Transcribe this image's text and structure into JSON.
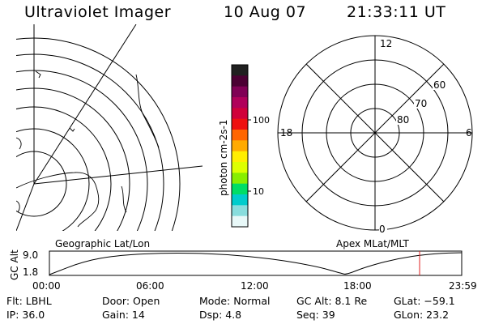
{
  "header": {
    "instrument": "Ultraviolet Imager",
    "date": "10 Aug 07",
    "time": "21:33:11 UT"
  },
  "geo_panel": {
    "label": "Geographic Lat/Lon"
  },
  "polar_panel": {
    "label": "Apex MLat/MLT",
    "mlt_labels": [
      "12",
      "18",
      "6",
      "0"
    ],
    "mlat_labels": [
      "60",
      "70",
      "80"
    ]
  },
  "colorbar": {
    "unit_label": "photon cm-2s-1",
    "tick_labels": [
      "100",
      "10"
    ],
    "colors": [
      "#202020",
      "#4b0033",
      "#800055",
      "#b0005a",
      "#d0003a",
      "#ee1010",
      "#ff6600",
      "#ffaa00",
      "#ffee00",
      "#ddff00",
      "#88ee00",
      "#00dd66",
      "#00cccc",
      "#88dddd",
      "#e8f8f8"
    ]
  },
  "altitude_plot": {
    "ylabel": "GC Alt",
    "yticks": [
      "9.0",
      "1.8"
    ],
    "xticks": [
      "00:00",
      "06:00",
      "12:00",
      "18:00",
      "23:59"
    ],
    "y_range": [
      1.8,
      9.0
    ],
    "curve": [
      {
        "t": 0.0,
        "alt": 1.8
      },
      {
        "t": 2.0,
        "alt": 6.2
      },
      {
        "t": 4.0,
        "alt": 8.2
      },
      {
        "t": 7.0,
        "alt": 9.0
      },
      {
        "t": 10.0,
        "alt": 8.6
      },
      {
        "t": 13.0,
        "alt": 7.0
      },
      {
        "t": 15.5,
        "alt": 4.6
      },
      {
        "t": 17.0,
        "alt": 2.2
      },
      {
        "t": 17.3,
        "alt": 1.8
      },
      {
        "t": 18.5,
        "alt": 4.5
      },
      {
        "t": 20.5,
        "alt": 7.4
      },
      {
        "t": 22.5,
        "alt": 8.8
      },
      {
        "t": 23.98,
        "alt": 9.0
      }
    ],
    "marker_time": 21.55,
    "marker_color": "#e02020"
  },
  "info": {
    "filter": "Flt: LBHL",
    "ip": "IP: 36.0",
    "door": "Door: Open",
    "gain": "Gain: 14",
    "mode": "Mode: Normal",
    "dsp": "Dsp:    4.8",
    "gc_alt": "GC Alt: 8.1 Re",
    "seq": "Seq: 39",
    "glat": "GLat: −59.1",
    "glon": "GLon:  23.2"
  }
}
